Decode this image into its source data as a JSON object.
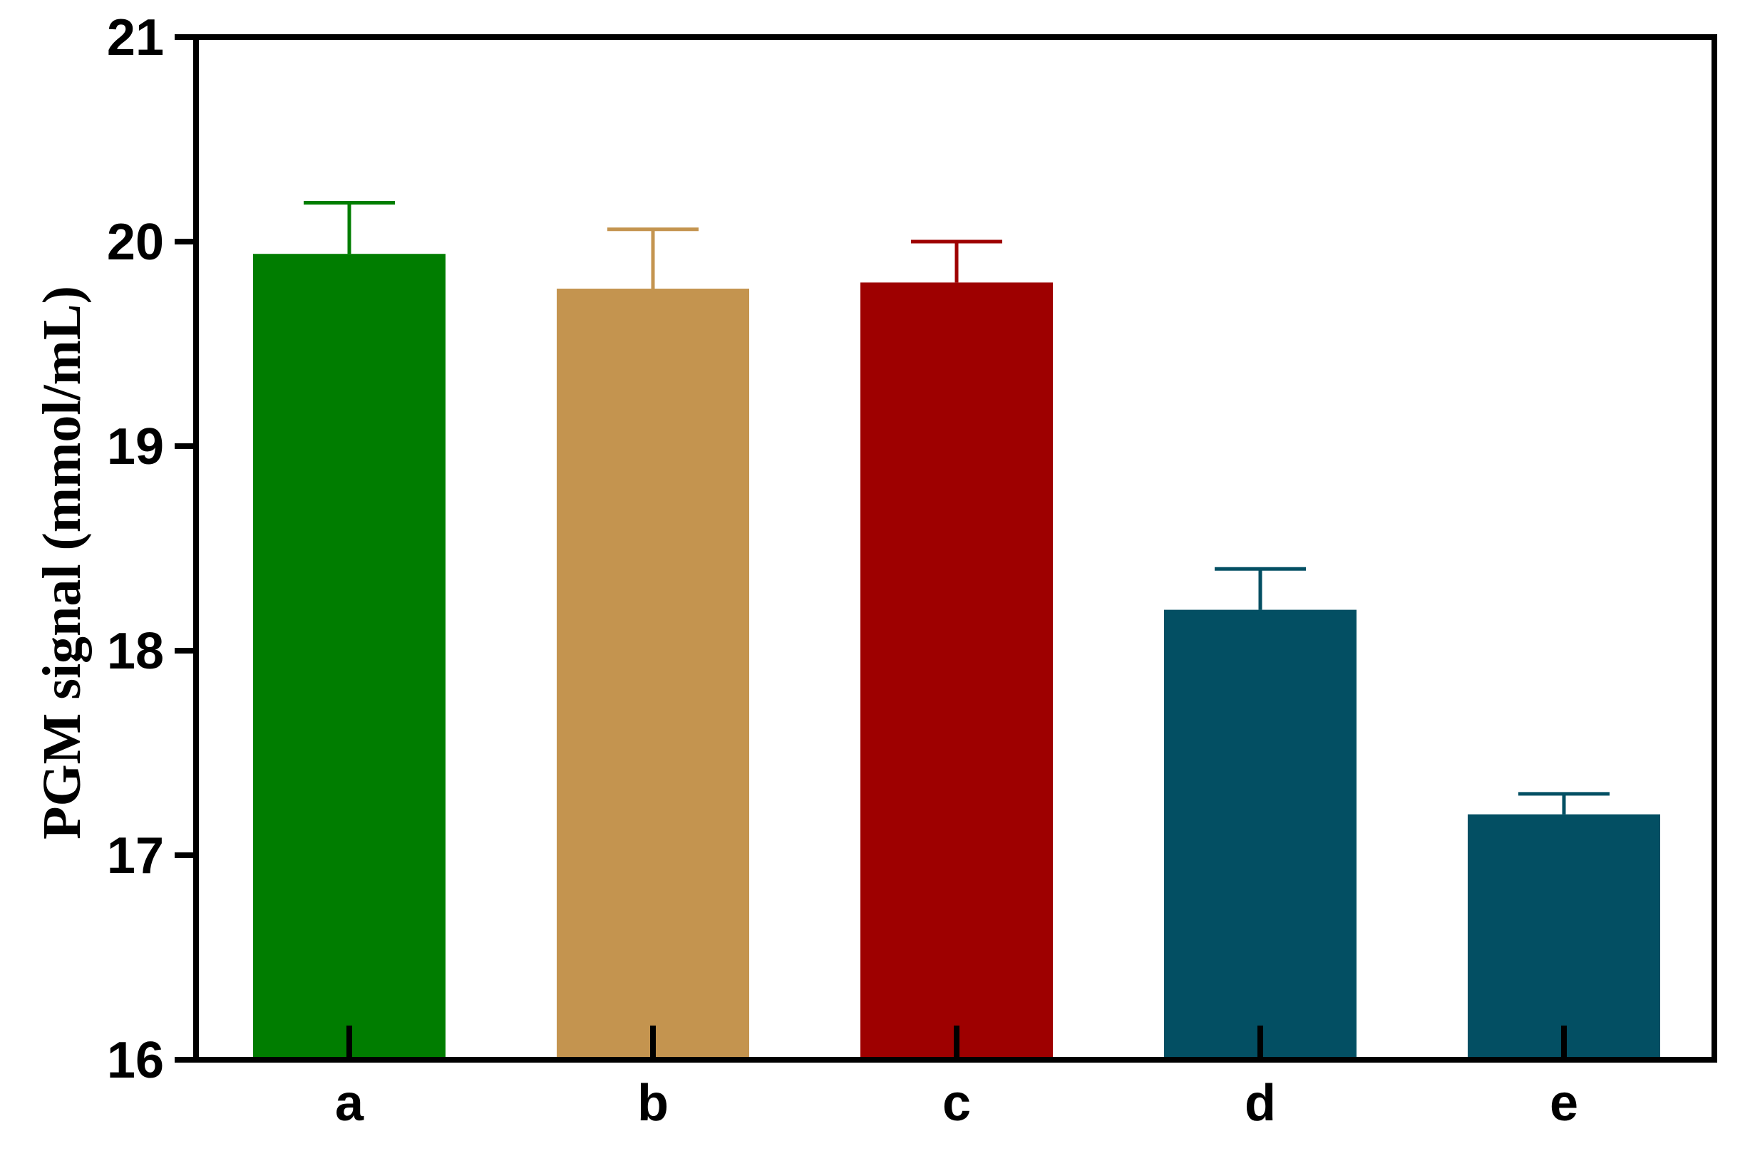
{
  "chart_data": {
    "type": "bar",
    "categories": [
      "a",
      "b",
      "c",
      "d",
      "e"
    ],
    "values": [
      19.94,
      19.77,
      19.8,
      18.2,
      17.2
    ],
    "errors": [
      0.25,
      0.29,
      0.2,
      0.2,
      0.1
    ],
    "colors": [
      "#007D00",
      "#C4944F",
      "#9E0000",
      "#034F63",
      "#034F63"
    ],
    "title": "",
    "xlabel": "",
    "ylabel": "PGM signal (mmol/mL)",
    "ylim": [
      16,
      21
    ],
    "yticks": [
      16,
      17,
      18,
      19,
      20,
      21
    ],
    "ytick_labels": [
      "16",
      "17",
      "18",
      "19",
      "20",
      "21"
    ],
    "grid": false,
    "legend": "none"
  }
}
